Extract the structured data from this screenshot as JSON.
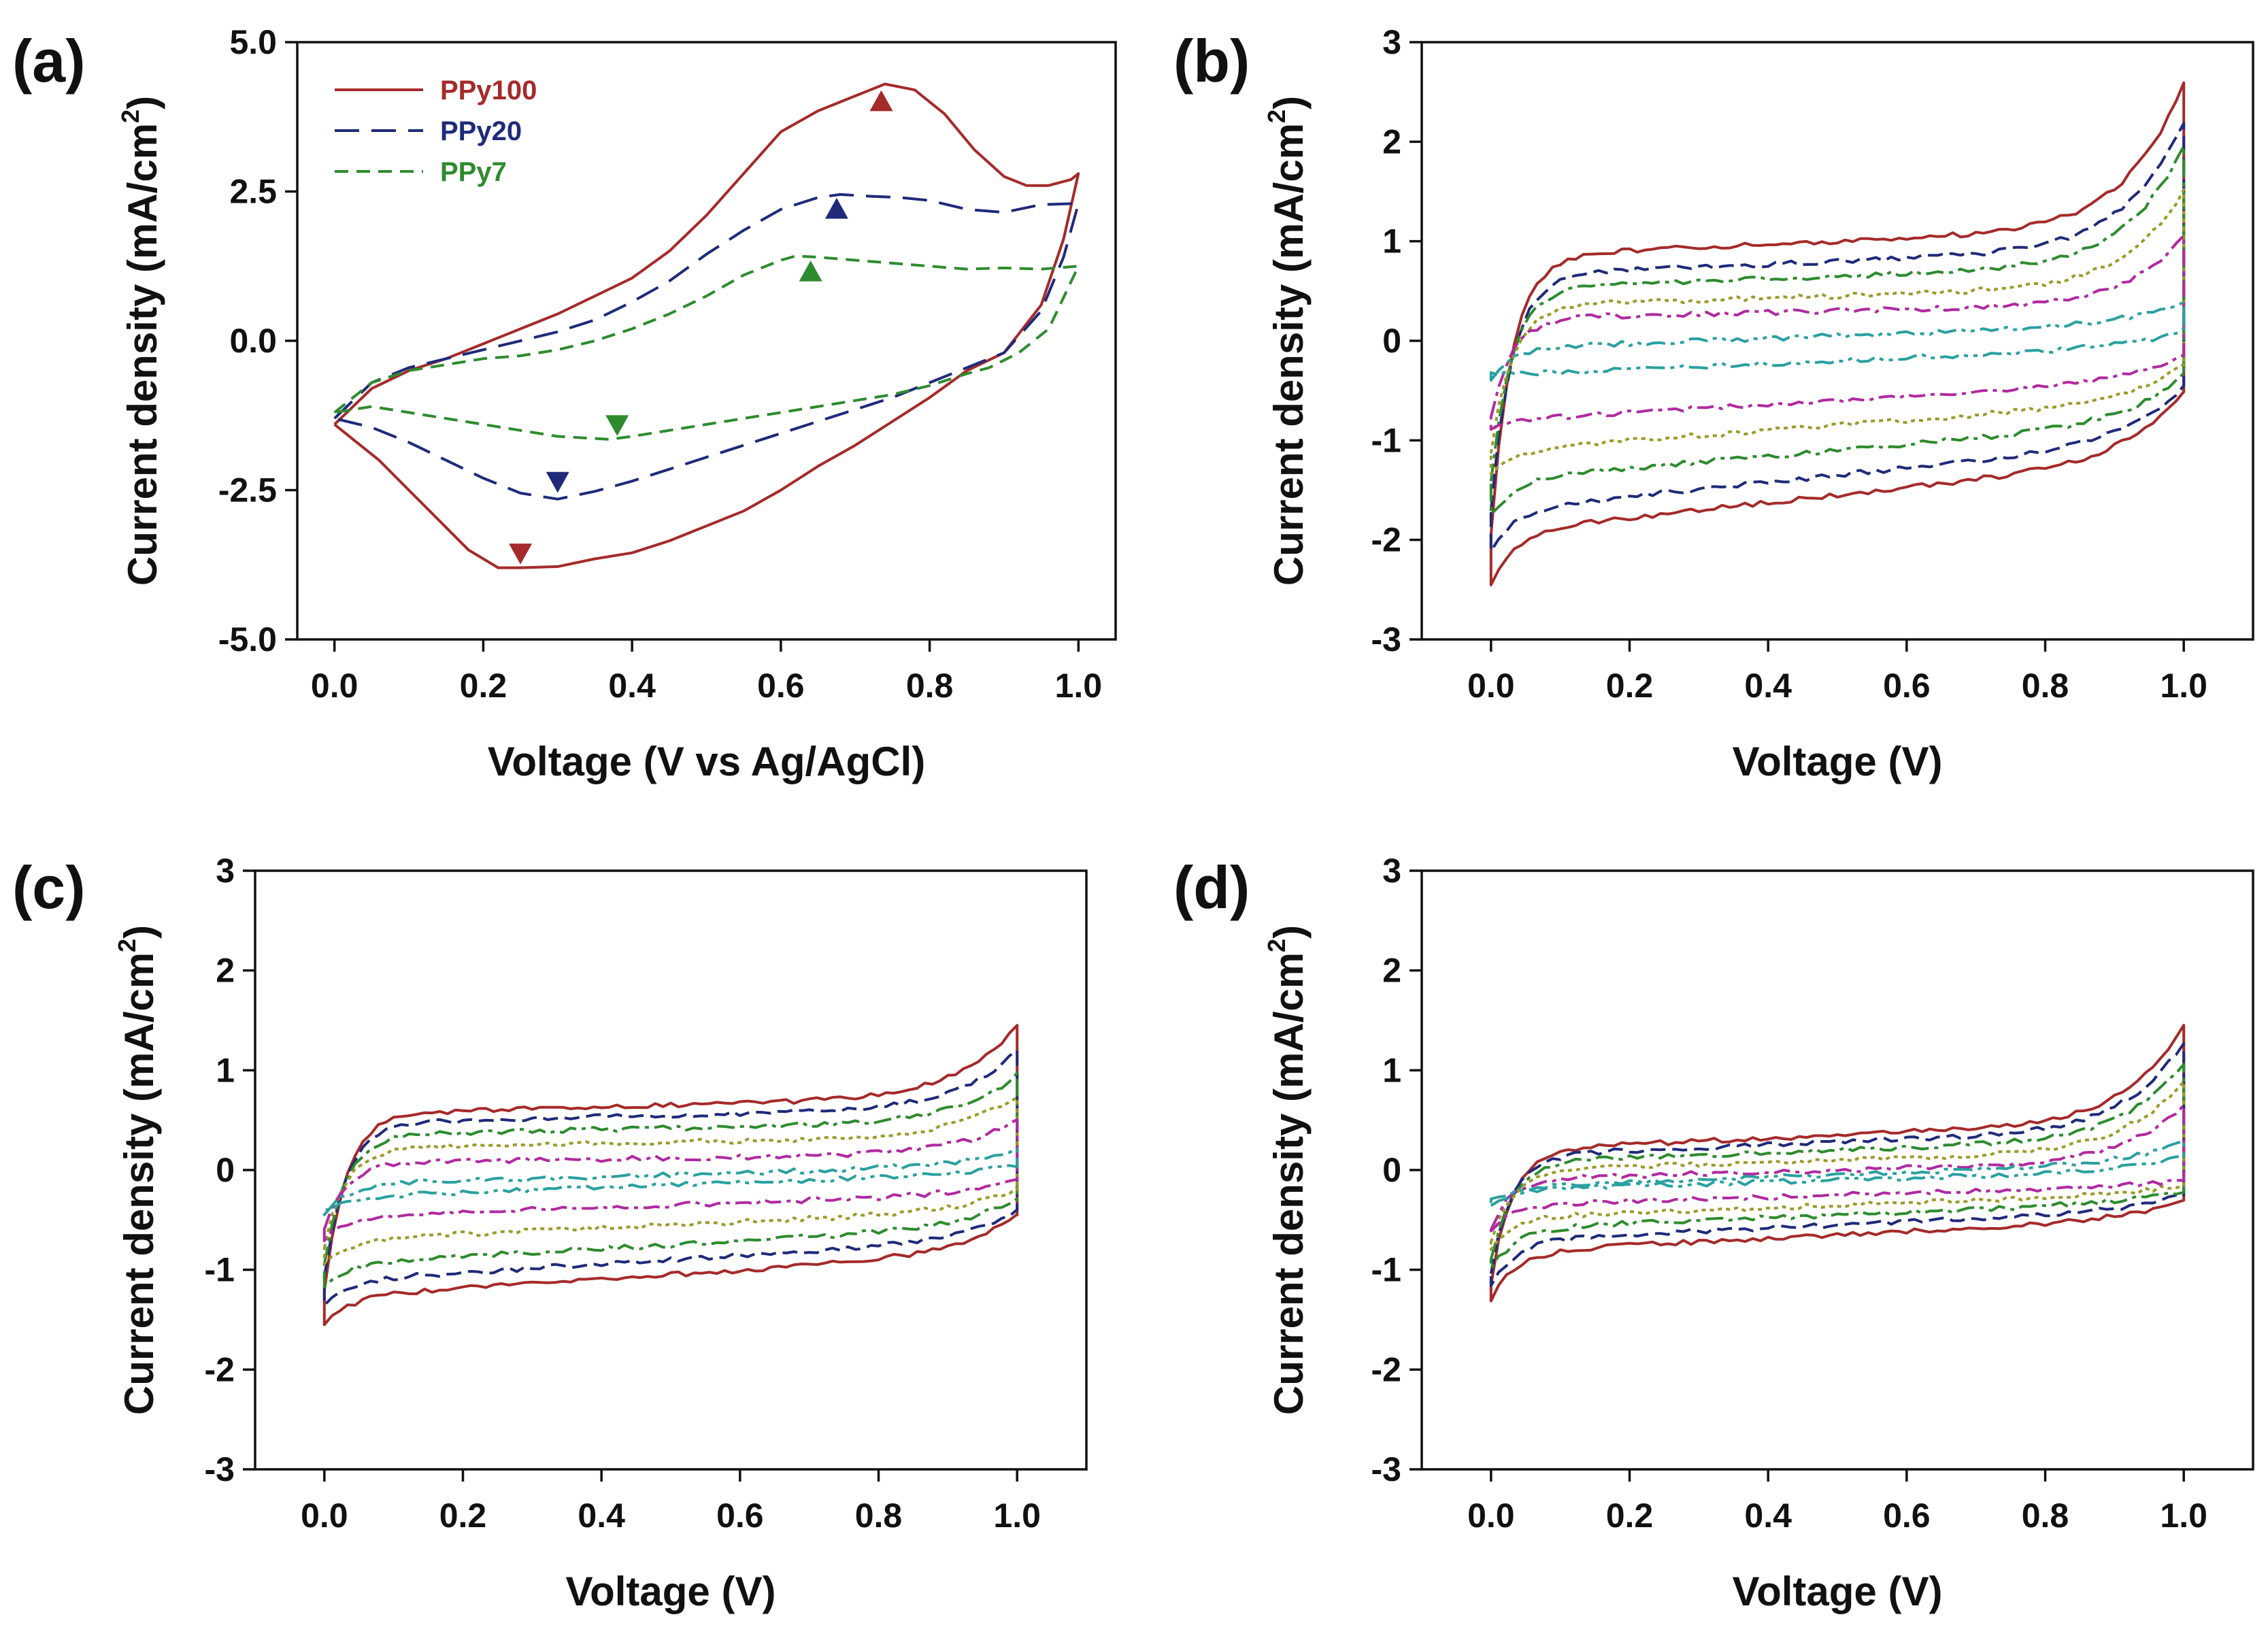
{
  "chart_data": [
    {
      "id": "a",
      "type": "line",
      "panel_label": "(a)",
      "xlabel": "Voltage (V vs Ag/AgCl)",
      "ylabel": "Current density (mA/cm",
      "ylabel_sup": "2",
      "ylabel_close": ")",
      "xlim": [
        -0.05,
        1.05
      ],
      "ylim": [
        -5.0,
        5.0
      ],
      "x_ticks": [
        0.0,
        0.2,
        0.4,
        0.6,
        0.8,
        1.0
      ],
      "x_tick_labels": [
        "0.0",
        "0.2",
        "0.4",
        "0.6",
        "0.8",
        "1.0"
      ],
      "y_ticks": [
        -5.0,
        -2.5,
        0.0,
        2.5,
        5.0
      ],
      "y_tick_labels": [
        "-5.0",
        "-2.5",
        "0.0",
        "2.5",
        "5.0"
      ],
      "legend": {
        "position": "top-left",
        "entries": [
          "PPy100",
          "PPy20",
          "PPy7"
        ]
      },
      "series": [
        {
          "name": "PPy100",
          "color": "#a52a2a",
          "dash": "solid",
          "x": [
            0.0,
            0.05,
            0.1,
            0.15,
            0.2,
            0.25,
            0.3,
            0.35,
            0.4,
            0.45,
            0.5,
            0.55,
            0.6,
            0.65,
            0.7,
            0.74,
            0.78,
            0.82,
            0.86,
            0.9,
            0.93,
            0.96,
            0.99,
            1.0,
            0.98,
            0.95,
            0.9,
            0.85,
            0.8,
            0.75,
            0.7,
            0.65,
            0.6,
            0.55,
            0.5,
            0.45,
            0.4,
            0.35,
            0.3,
            0.25,
            0.22,
            0.18,
            0.14,
            0.1,
            0.06,
            0.03,
            0.0
          ],
          "y": [
            -1.4,
            -0.8,
            -0.5,
            -0.3,
            -0.05,
            0.2,
            0.45,
            0.75,
            1.05,
            1.5,
            2.1,
            2.8,
            3.5,
            3.85,
            4.1,
            4.3,
            4.2,
            3.8,
            3.2,
            2.75,
            2.6,
            2.6,
            2.7,
            2.8,
            1.7,
            0.6,
            -0.2,
            -0.5,
            -0.95,
            -1.35,
            -1.75,
            -2.1,
            -2.5,
            -2.85,
            -3.1,
            -3.35,
            -3.55,
            -3.65,
            -3.78,
            -3.8,
            -3.8,
            -3.5,
            -3.0,
            -2.5,
            -2.0,
            -1.7,
            -1.4
          ]
        },
        {
          "name": "PPy20",
          "color": "#1f2a7a",
          "dash": "36 18",
          "x": [
            0.0,
            0.05,
            0.1,
            0.15,
            0.2,
            0.25,
            0.3,
            0.35,
            0.4,
            0.45,
            0.5,
            0.55,
            0.6,
            0.65,
            0.68,
            0.72,
            0.76,
            0.8,
            0.85,
            0.9,
            0.95,
            1.0,
            0.98,
            0.95,
            0.9,
            0.85,
            0.8,
            0.75,
            0.7,
            0.65,
            0.6,
            0.55,
            0.5,
            0.45,
            0.4,
            0.35,
            0.3,
            0.25,
            0.2,
            0.15,
            0.1,
            0.05,
            0.0
          ],
          "y": [
            -1.3,
            -0.7,
            -0.45,
            -0.3,
            -0.15,
            0.0,
            0.15,
            0.35,
            0.65,
            1.0,
            1.45,
            1.85,
            2.2,
            2.4,
            2.45,
            2.42,
            2.4,
            2.35,
            2.2,
            2.15,
            2.28,
            2.3,
            1.4,
            0.5,
            -0.2,
            -0.45,
            -0.7,
            -0.95,
            -1.15,
            -1.35,
            -1.55,
            -1.75,
            -1.95,
            -2.15,
            -2.35,
            -2.52,
            -2.65,
            -2.55,
            -2.3,
            -2.0,
            -1.7,
            -1.45,
            -1.3
          ]
        },
        {
          "name": "PPy7",
          "color": "#2e8b2e",
          "dash": "20 12",
          "x": [
            0.0,
            0.05,
            0.1,
            0.15,
            0.2,
            0.25,
            0.3,
            0.35,
            0.4,
            0.45,
            0.5,
            0.55,
            0.6,
            0.62,
            0.65,
            0.7,
            0.75,
            0.8,
            0.85,
            0.9,
            0.95,
            1.0,
            0.96,
            0.92,
            0.88,
            0.85,
            0.8,
            0.75,
            0.7,
            0.65,
            0.6,
            0.55,
            0.5,
            0.45,
            0.4,
            0.37,
            0.3,
            0.2,
            0.1,
            0.05,
            0.0
          ],
          "y": [
            -1.2,
            -0.7,
            -0.5,
            -0.4,
            -0.3,
            -0.25,
            -0.15,
            0.0,
            0.2,
            0.45,
            0.75,
            1.1,
            1.35,
            1.42,
            1.4,
            1.35,
            1.3,
            1.25,
            1.2,
            1.22,
            1.2,
            1.25,
            0.2,
            -0.2,
            -0.45,
            -0.55,
            -0.75,
            -0.9,
            -1.0,
            -1.1,
            -1.2,
            -1.3,
            -1.4,
            -1.5,
            -1.6,
            -1.65,
            -1.6,
            -1.4,
            -1.2,
            -1.1,
            -1.2
          ]
        }
      ],
      "annotations": [
        {
          "label": "triangle-up",
          "x": 0.735,
          "y": 4.0,
          "color": "#a52a2a"
        },
        {
          "label": "triangle-up",
          "x": 0.675,
          "y": 2.2,
          "color": "#1f2a7a"
        },
        {
          "label": "triangle-up",
          "x": 0.64,
          "y": 1.15,
          "color": "#2e8b2e"
        },
        {
          "label": "triangle-down",
          "x": 0.25,
          "y": -3.55,
          "color": "#a52a2a"
        },
        {
          "label": "triangle-down",
          "x": 0.3,
          "y": -2.35,
          "color": "#1f2a7a"
        },
        {
          "label": "triangle-down",
          "x": 0.38,
          "y": -1.4,
          "color": "#2e8b2e"
        }
      ]
    },
    {
      "id": "b",
      "type": "line",
      "panel_label": "(b)",
      "xlabel": "Voltage (V)",
      "ylabel": "Current density (mA/cm",
      "ylabel_sup": "2",
      "ylabel_close": ")",
      "xlim": [
        -0.1,
        1.1
      ],
      "ylim": [
        -3,
        3
      ],
      "x_ticks": [
        0.0,
        0.2,
        0.4,
        0.6,
        0.8,
        1.0
      ],
      "x_tick_labels": [
        "0.0",
        "0.2",
        "0.4",
        "0.6",
        "0.8",
        "1.0"
      ],
      "y_ticks": [
        -3,
        -2,
        -1,
        0,
        1,
        2,
        3
      ],
      "y_tick_labels": [
        "-3",
        "-2",
        "-1",
        "0",
        "1",
        "2",
        "3"
      ],
      "loops": [
        {
          "name": "loop-1",
          "color": "#a52a2a",
          "dash": "solid",
          "plateau_top": 1.0,
          "slope_top": 0.3,
          "end_top": 2.6,
          "plateau_bot": -1.55,
          "slope_bot": 0.75,
          "start_bot": -2.45,
          "end_bot": -0.5
        },
        {
          "name": "loop-2",
          "color": "#1f2a7a",
          "dash": "22 10",
          "plateau_top": 0.8,
          "slope_top": 0.3,
          "end_top": 2.2,
          "plateau_bot": -1.35,
          "slope_bot": 0.7,
          "start_bot": -2.1,
          "end_bot": -0.45
        },
        {
          "name": "loop-3",
          "color": "#2e8b2e",
          "dash": "26 8 6 8",
          "plateau_top": 0.65,
          "slope_top": 0.25,
          "end_top": 1.95,
          "plateau_bot": -1.1,
          "slope_bot": 0.6,
          "start_bot": -1.75,
          "end_bot": -0.35
        },
        {
          "name": "loop-4",
          "color": "#9a9a2a",
          "dash": "6 6",
          "plateau_top": 0.45,
          "slope_top": 0.2,
          "end_top": 1.5,
          "plateau_bot": -0.85,
          "slope_bot": 0.5,
          "start_bot": -1.35,
          "end_bot": -0.25
        },
        {
          "name": "loop-5",
          "color": "#b02aa0",
          "dash": "24 8 6 8",
          "plateau_top": 0.3,
          "slope_top": 0.15,
          "end_top": 1.05,
          "plateau_bot": -0.6,
          "slope_bot": 0.4,
          "start_bot": -0.9,
          "end_bot": -0.15
        },
        {
          "name": "loop-6",
          "color": "#2aa0a0",
          "dash": "28 8 6 8 6 8",
          "plateau_top": 0.05,
          "slope_top": 0.25,
          "end_top": 0.4,
          "plateau_bot": -0.2,
          "slope_bot": 0.3,
          "start_bot": -0.32,
          "end_bot": 0.1
        }
      ]
    },
    {
      "id": "c",
      "type": "line",
      "panel_label": "(c)",
      "xlabel": "Voltage (V)",
      "ylabel": "Current density (mA/cm",
      "ylabel_sup": "2",
      "ylabel_close": ")",
      "xlim": [
        -0.1,
        1.1
      ],
      "ylim": [
        -3,
        3
      ],
      "x_ticks": [
        0.0,
        0.2,
        0.4,
        0.6,
        0.8,
        1.0
      ],
      "x_tick_labels": [
        "0.0",
        "0.2",
        "0.4",
        "0.6",
        "0.8",
        "1.0"
      ],
      "y_ticks": [
        -3,
        -2,
        -1,
        0,
        1,
        2,
        3
      ],
      "y_tick_labels": [
        "-3",
        "-2",
        "-1",
        "0",
        "1",
        "2",
        "3"
      ],
      "loops": [
        {
          "name": "loop-1",
          "color": "#a52a2a",
          "dash": "solid",
          "plateau_top": 0.65,
          "slope_top": 0.2,
          "end_top": 1.45,
          "plateau_bot": -1.05,
          "slope_bot": 0.45,
          "start_bot": -1.55,
          "end_bot": -0.45
        },
        {
          "name": "loop-2",
          "color": "#1f2a7a",
          "dash": "22 10",
          "plateau_top": 0.55,
          "slope_top": 0.18,
          "end_top": 1.2,
          "plateau_bot": -0.9,
          "slope_bot": 0.42,
          "start_bot": -1.35,
          "end_bot": -0.4
        },
        {
          "name": "loop-3",
          "color": "#2e8b2e",
          "dash": "26 8 6 8",
          "plateau_top": 0.42,
          "slope_top": 0.15,
          "end_top": 0.95,
          "plateau_bot": -0.75,
          "slope_bot": 0.38,
          "start_bot": -1.15,
          "end_bot": -0.3
        },
        {
          "name": "loop-4",
          "color": "#9a9a2a",
          "dash": "6 6",
          "plateau_top": 0.28,
          "slope_top": 0.12,
          "end_top": 0.75,
          "plateau_bot": -0.55,
          "slope_bot": 0.3,
          "start_bot": -0.95,
          "end_bot": -0.2
        },
        {
          "name": "loop-5",
          "color": "#b02aa0",
          "dash": "24 8 6 8",
          "plateau_top": 0.12,
          "slope_top": 0.1,
          "end_top": 0.5,
          "plateau_bot": -0.35,
          "slope_bot": 0.22,
          "start_bot": -0.7,
          "end_bot": -0.1
        },
        {
          "name": "loop-6",
          "color": "#2aa0a0",
          "dash": "28 8 6 8 6 8",
          "plateau_top": -0.05,
          "slope_top": 0.2,
          "end_top": 0.2,
          "plateau_bot": -0.15,
          "slope_bot": 0.25,
          "start_bot": -0.42,
          "end_bot": 0.05
        }
      ]
    },
    {
      "id": "d",
      "type": "line",
      "panel_label": "(d)",
      "xlabel": "Voltage (V)",
      "ylabel": "Current density (mA/cm",
      "ylabel_sup": "2",
      "ylabel_close": ")",
      "xlim": [
        -0.1,
        1.1
      ],
      "ylim": [
        -3,
        3
      ],
      "x_ticks": [
        0.0,
        0.2,
        0.4,
        0.6,
        0.8,
        1.0
      ],
      "x_tick_labels": [
        "0.0",
        "0.2",
        "0.4",
        "0.6",
        "0.8",
        "1.0"
      ],
      "y_ticks": [
        -3,
        -2,
        -1,
        0,
        1,
        2,
        3
      ],
      "y_tick_labels": [
        "-3",
        "-2",
        "-1",
        "0",
        "1",
        "2",
        "3"
      ],
      "loops": [
        {
          "name": "loop-1",
          "color": "#a52a2a",
          "dash": "solid",
          "plateau_top": 0.35,
          "slope_top": 0.3,
          "end_top": 1.45,
          "plateau_bot": -0.65,
          "slope_bot": 0.35,
          "start_bot": -1.3,
          "end_bot": -0.3
        },
        {
          "name": "loop-2",
          "color": "#1f2a7a",
          "dash": "22 10",
          "plateau_top": 0.28,
          "slope_top": 0.28,
          "end_top": 1.28,
          "plateau_bot": -0.55,
          "slope_bot": 0.32,
          "start_bot": -1.15,
          "end_bot": -0.25
        },
        {
          "name": "loop-3",
          "color": "#2e8b2e",
          "dash": "26 8 6 8",
          "plateau_top": 0.2,
          "slope_top": 0.25,
          "end_top": 1.08,
          "plateau_bot": -0.45,
          "slope_bot": 0.28,
          "start_bot": -1.0,
          "end_bot": -0.2
        },
        {
          "name": "loop-4",
          "color": "#9a9a2a",
          "dash": "6 6",
          "plateau_top": 0.1,
          "slope_top": 0.22,
          "end_top": 0.9,
          "plateau_bot": -0.35,
          "slope_bot": 0.24,
          "start_bot": -0.8,
          "end_bot": -0.15
        },
        {
          "name": "loop-5",
          "color": "#b02aa0",
          "dash": "24 8 6 8",
          "plateau_top": 0.0,
          "slope_top": 0.18,
          "end_top": 0.65,
          "plateau_bot": -0.25,
          "slope_bot": 0.2,
          "start_bot": -0.6,
          "end_bot": -0.1
        },
        {
          "name": "loop-6",
          "color": "#2aa0a0",
          "dash": "28 8 6 8 6 8",
          "plateau_top": -0.05,
          "slope_top": 0.25,
          "end_top": 0.28,
          "plateau_bot": -0.1,
          "slope_bot": 0.2,
          "start_bot": -0.3,
          "end_bot": 0.15
        }
      ]
    }
  ]
}
